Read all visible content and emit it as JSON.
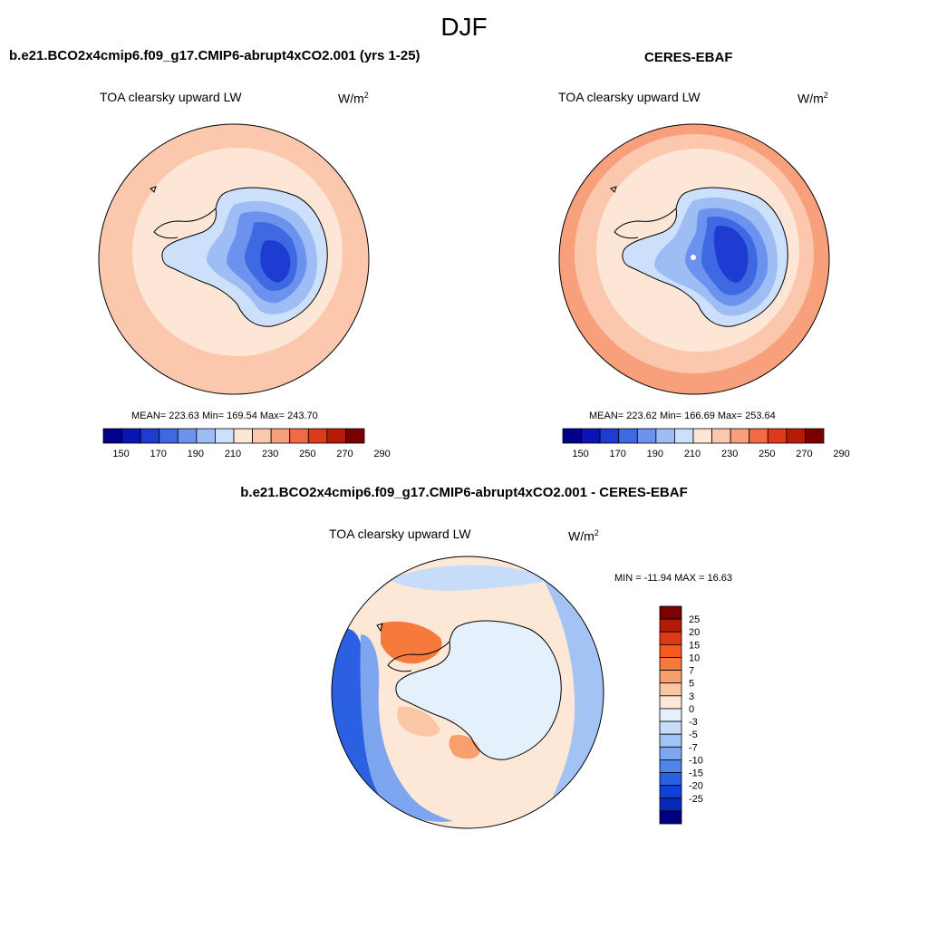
{
  "figure": {
    "season": "DJF"
  },
  "palettes": {
    "abs": [
      "#00008a",
      "#0a14b4",
      "#1e3cd2",
      "#3f68e3",
      "#6a92ee",
      "#9fbdf5",
      "#cce0fb",
      "#fde6d6",
      "#fbc7ad",
      "#f89f7c",
      "#f36b44",
      "#de3a19",
      "#b71b08",
      "#7a0000"
    ],
    "diff": [
      "#7d0000",
      "#b41a05",
      "#dd3912",
      "#f55a20",
      "#f67a3c",
      "#f99f6d",
      "#fbc6a5",
      "#fde8d8",
      "#e5f0fd",
      "#c6dcf8",
      "#a3c3f4",
      "#7ea6f0",
      "#5184ea",
      "#2b60e3",
      "#1040d6",
      "#0a28b8",
      "#000080"
    ]
  },
  "chart_data": [
    {
      "type": "heatmap",
      "projection": "south-polar-stereographic",
      "title": "b.e21.BCO2x4cmip6.f09_g17.CMIP6-abrupt4xCO2.001 (yrs 1-25)",
      "variable": "TOA clearsky upward LW",
      "units_base": "W/m",
      "units_exp": "2",
      "stats_text": "MEAN= 223.63  Min= 169.54  Max= 243.70",
      "mean": 223.63,
      "min": 169.54,
      "max": 243.7,
      "colorbar_ticks": [
        "150",
        "170",
        "190",
        "210",
        "230",
        "250",
        "270",
        "290"
      ],
      "colorbar_levels": [
        145,
        150,
        160,
        170,
        180,
        190,
        200,
        210,
        220,
        230,
        240,
        250,
        260,
        270,
        280,
        290,
        295
      ]
    },
    {
      "type": "heatmap",
      "projection": "south-polar-stereographic",
      "title": "CERES-EBAF",
      "variable": "TOA clearsky upward LW",
      "units_base": "W/m",
      "units_exp": "2",
      "stats_text": "MEAN= 223.62  Min= 166.69  Max= 253.64",
      "mean": 223.62,
      "min": 166.69,
      "max": 253.64,
      "colorbar_ticks": [
        "150",
        "170",
        "190",
        "210",
        "230",
        "250",
        "270",
        "290"
      ]
    },
    {
      "type": "heatmap",
      "projection": "south-polar-stereographic",
      "title": "b.e21.BCO2x4cmip6.f09_g17.CMIP6-abrupt4xCO2.001 - CERES-EBAF",
      "variable": "TOA clearsky upward LW",
      "units_base": "W/m",
      "units_exp": "2",
      "minmax_text": "MIN = -11.94 MAX =  16.63",
      "min": -11.94,
      "max": 16.63,
      "colorbar_labels": [
        "25",
        "20",
        "15",
        "10",
        "7",
        "5",
        "3",
        "0",
        "-3",
        "-5",
        "-7",
        "-10",
        "-15",
        "-20",
        "-25"
      ]
    }
  ]
}
